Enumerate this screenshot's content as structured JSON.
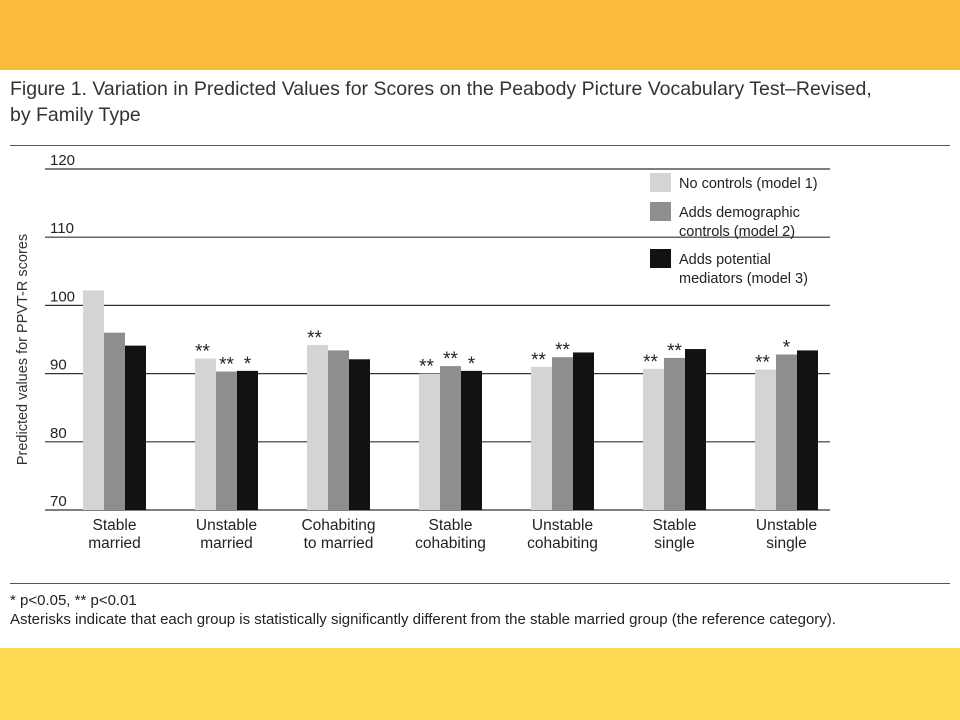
{
  "colors": {
    "band_top": "#FBBB3A",
    "band_bottom": "#FFDA55",
    "series": [
      "#D4D4D4",
      "#8E8E8E",
      "#121212"
    ],
    "axis": "#333333"
  },
  "figure": {
    "title_line1": "Figure 1. Variation in Predicted Values for Scores on the Peabody Picture Vocabulary Test–Revised,",
    "title_line2": "by Family Type"
  },
  "chart_data": {
    "type": "bar",
    "ylabel": "Predicted values for PPVT-R scores",
    "ylim": [
      70,
      120
    ],
    "yticks": [
      70,
      80,
      90,
      100,
      110,
      120
    ],
    "grid": true,
    "legend_position": "top-right",
    "categories": [
      [
        "Stable",
        "married"
      ],
      [
        "Unstable",
        "married"
      ],
      [
        "Cohabiting",
        "to married"
      ],
      [
        "Stable",
        "cohabiting"
      ],
      [
        "Unstable",
        "cohabiting"
      ],
      [
        "Stable",
        "single"
      ],
      [
        "Unstable",
        "single"
      ]
    ],
    "series": [
      {
        "name": [
          "No controls (model 1)"
        ],
        "values": [
          102.2,
          92.2,
          94.2,
          90.0,
          91.0,
          90.7,
          90.6
        ],
        "significance": [
          "",
          "**",
          "**",
          "**",
          "**",
          "**",
          "**"
        ]
      },
      {
        "name": [
          "Adds demographic",
          "controls (model 2)"
        ],
        "values": [
          96.0,
          90.3,
          93.4,
          91.1,
          92.4,
          92.3,
          92.8
        ],
        "significance": [
          "",
          "**",
          "",
          "**",
          "**",
          "**",
          "*"
        ]
      },
      {
        "name": [
          "Adds potential",
          "mediators (model 3)"
        ],
        "values": [
          94.1,
          90.4,
          92.1,
          90.4,
          93.1,
          93.6,
          93.4
        ],
        "significance": [
          "",
          "*",
          "",
          "*",
          "",
          "",
          ""
        ]
      }
    ]
  },
  "footnote": {
    "significance": "* p<0.05, ** p<0.01",
    "note": "Asterisks indicate that each group is statistically significantly different from the stable married group (the reference category)."
  }
}
